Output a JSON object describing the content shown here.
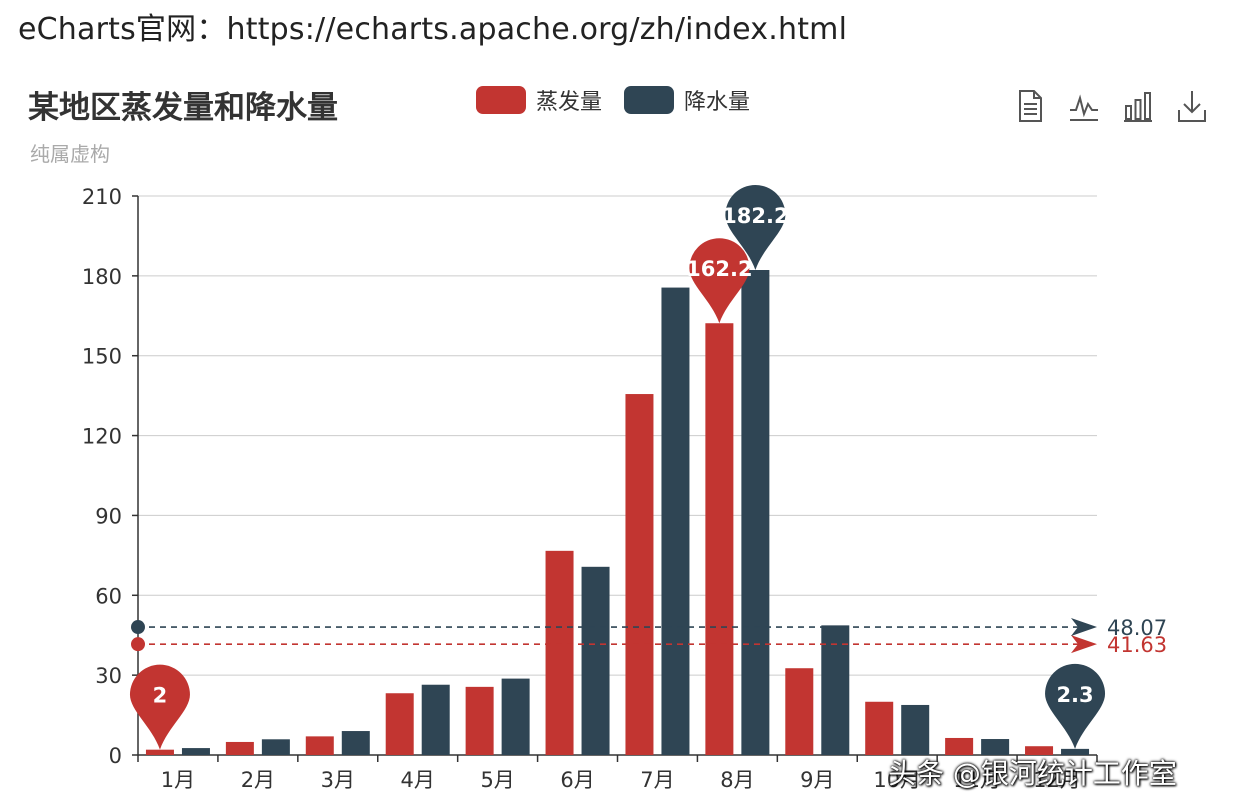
{
  "caption": "eCharts官网：https://echarts.apache.org/zh/index.html",
  "toolbox": [
    "data-view-icon",
    "line-chart-icon",
    "bar-chart-icon",
    "download-icon"
  ],
  "watermark": "头条 @银河统计工作室",
  "colors": {
    "evaporation": "#c23531",
    "precipitation": "#2f4554",
    "axis": "#333333",
    "grid": "#cccccc"
  },
  "chart_data": {
    "type": "bar",
    "title": "某地区蒸发量和降水量",
    "subtitle": "纯属虚构",
    "categories": [
      "1月",
      "2月",
      "3月",
      "4月",
      "5月",
      "6月",
      "7月",
      "8月",
      "9月",
      "10月",
      "11月",
      "12月"
    ],
    "series": [
      {
        "name": "蒸发量",
        "color": "#c23531",
        "values": [
          2.0,
          4.9,
          7.0,
          23.2,
          25.6,
          76.7,
          135.6,
          162.2,
          32.6,
          20.0,
          6.4,
          3.3
        ],
        "markPoints": [
          {
            "type": "max",
            "label": "162.2",
            "index": 7
          },
          {
            "type": "min",
            "label": "2",
            "index": 0
          }
        ],
        "markLine": {
          "type": "average",
          "value": 41.63,
          "label": "41.63"
        }
      },
      {
        "name": "降水量",
        "color": "#2f4554",
        "values": [
          2.6,
          5.9,
          9.0,
          26.4,
          28.7,
          70.7,
          175.6,
          182.2,
          48.7,
          18.8,
          6.0,
          2.3
        ],
        "markPoints": [
          {
            "type": "max",
            "label": "182.2",
            "index": 7
          },
          {
            "type": "min",
            "label": "2.3",
            "index": 11
          }
        ],
        "markLine": {
          "type": "average",
          "value": 48.07,
          "label": "48.07"
        }
      }
    ],
    "yticks": [
      0,
      30,
      60,
      90,
      120,
      150,
      180,
      210
    ],
    "ylim": [
      0,
      210
    ],
    "grid": true,
    "legend_position": "top"
  }
}
